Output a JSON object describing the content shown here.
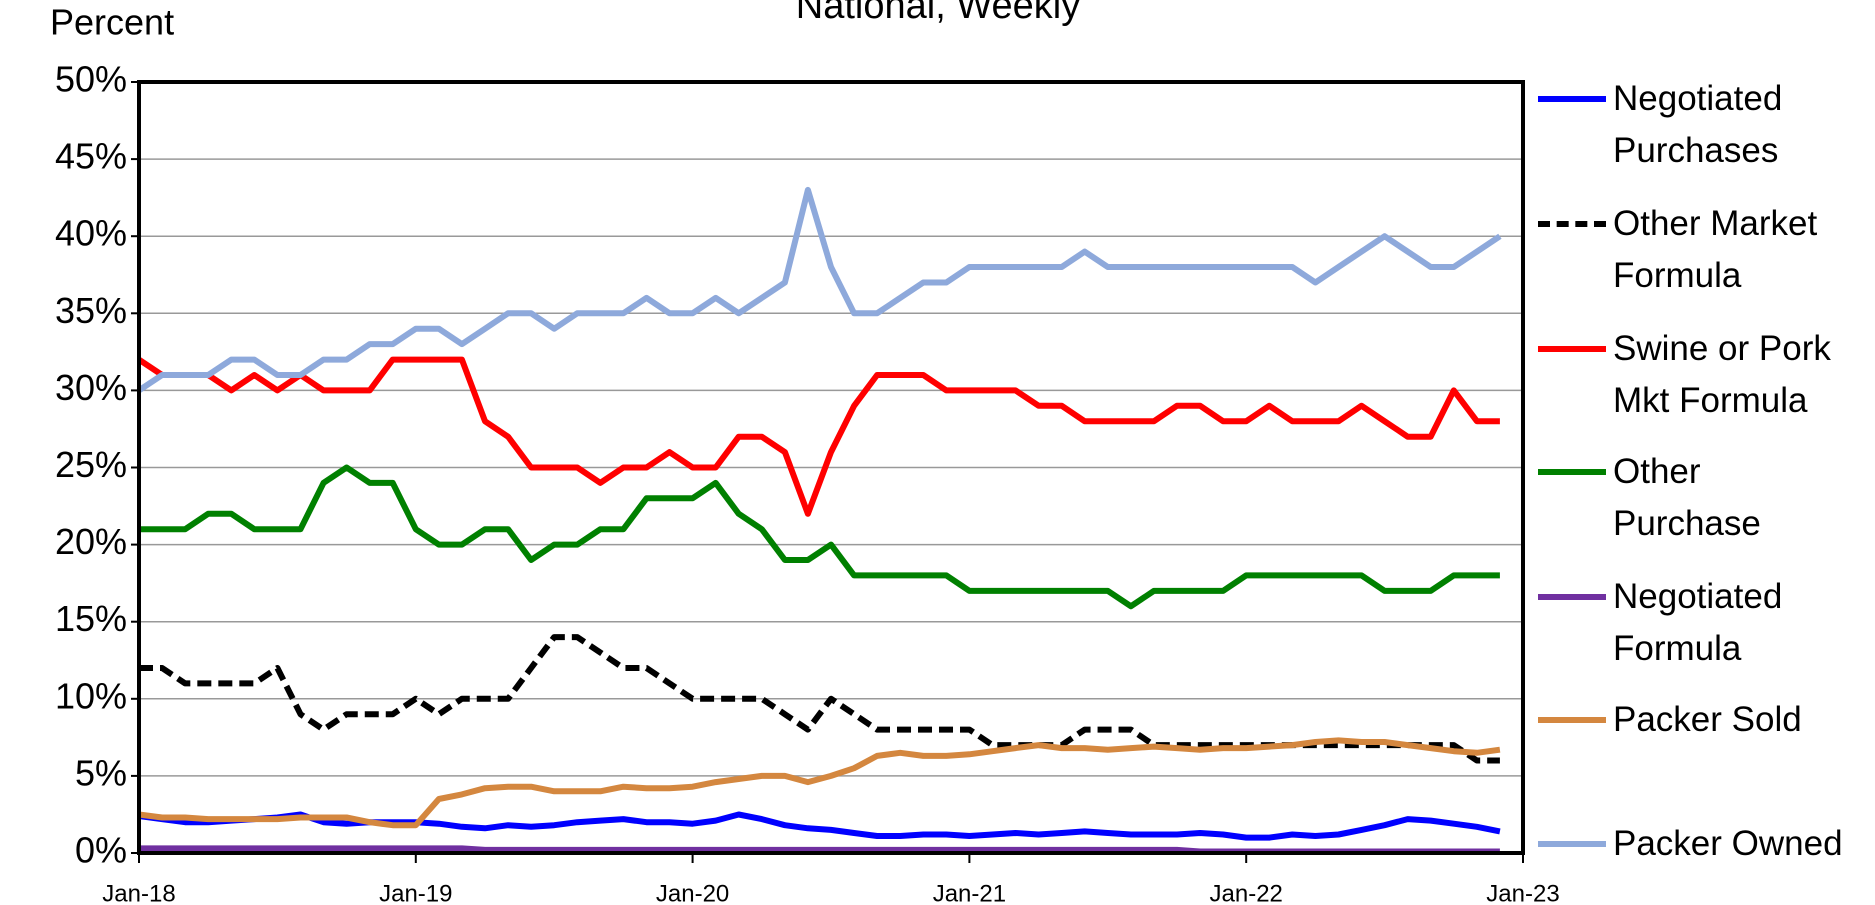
{
  "chart_data": {
    "type": "line",
    "title": "National, Weekly",
    "y_label": "Percent",
    "x": [
      "2018-01",
      "2018-02",
      "2018-03",
      "2018-04",
      "2018-05",
      "2018-06",
      "2018-07",
      "2018-08",
      "2018-09",
      "2018-10",
      "2018-11",
      "2018-12",
      "2019-01",
      "2019-02",
      "2019-03",
      "2019-04",
      "2019-05",
      "2019-06",
      "2019-07",
      "2019-08",
      "2019-09",
      "2019-10",
      "2019-11",
      "2019-12",
      "2020-01",
      "2020-02",
      "2020-03",
      "2020-04",
      "2020-05",
      "2020-06",
      "2020-07",
      "2020-08",
      "2020-09",
      "2020-10",
      "2020-11",
      "2020-12",
      "2021-01",
      "2021-02",
      "2021-03",
      "2021-04",
      "2021-05",
      "2021-06",
      "2021-07",
      "2021-08",
      "2021-09",
      "2021-10",
      "2021-11",
      "2021-12",
      "2022-01",
      "2022-02",
      "2022-03",
      "2022-04",
      "2022-05",
      "2022-06",
      "2022-07",
      "2022-08",
      "2022-09",
      "2022-10",
      "2022-11",
      "2022-12"
    ],
    "xlim": [
      "2018-01",
      "2023-01"
    ],
    "xticks": [
      {
        "value": "2018-01",
        "label": "Jan-18"
      },
      {
        "value": "2019-01",
        "label": "Jan-19"
      },
      {
        "value": "2020-01",
        "label": "Jan-20"
      },
      {
        "value": "2021-01",
        "label": "Jan-21"
      },
      {
        "value": "2022-01",
        "label": "Jan-22"
      },
      {
        "value": "2023-01",
        "label": "Jan-23"
      }
    ],
    "ylim": [
      0,
      50
    ],
    "yticks": [
      {
        "value": 0,
        "label": "0%"
      },
      {
        "value": 5,
        "label": "5%"
      },
      {
        "value": 10,
        "label": "10%"
      },
      {
        "value": 15,
        "label": "15%"
      },
      {
        "value": 20,
        "label": "20%"
      },
      {
        "value": 25,
        "label": "25%"
      },
      {
        "value": 30,
        "label": "30%"
      },
      {
        "value": 35,
        "label": "35%"
      },
      {
        "value": 40,
        "label": "40%"
      },
      {
        "value": 45,
        "label": "45%"
      },
      {
        "value": 50,
        "label": "50%"
      }
    ],
    "grid": true,
    "series": [
      {
        "name": "Negotiated Purchases",
        "color": "#0000ff",
        "values": [
          2.4,
          2.2,
          2.0,
          2.0,
          2.1,
          2.2,
          2.3,
          2.5,
          2.0,
          1.9,
          2.0,
          2.0,
          2.0,
          1.9,
          1.7,
          1.6,
          1.8,
          1.7,
          1.8,
          2.0,
          2.1,
          2.2,
          2.0,
          2.0,
          1.9,
          2.1,
          2.5,
          2.2,
          1.8,
          1.6,
          1.5,
          1.3,
          1.1,
          1.1,
          1.2,
          1.2,
          1.1,
          1.2,
          1.3,
          1.2,
          1.3,
          1.4,
          1.3,
          1.2,
          1.2,
          1.2,
          1.3,
          1.2,
          1.0,
          1.0,
          1.2,
          1.1,
          1.2,
          1.5,
          1.8,
          2.2,
          2.1,
          1.9,
          1.7,
          1.4
        ]
      },
      {
        "name": "Other Market Formula",
        "color": "#000000",
        "dashed": true,
        "values": [
          12,
          12,
          11,
          11,
          11,
          11,
          12,
          9,
          8,
          9,
          9,
          9,
          10,
          9,
          10,
          10,
          10,
          12,
          14,
          14,
          13,
          12,
          12,
          11,
          10,
          10,
          10,
          10,
          9,
          8,
          10,
          9,
          8,
          8,
          8,
          8,
          8,
          7,
          7,
          7,
          7,
          8,
          8,
          8,
          7,
          7,
          7,
          7,
          7,
          7,
          7,
          7,
          7,
          7,
          7,
          7,
          7,
          7,
          6,
          6
        ]
      },
      {
        "name": "Swine or Pork Mkt Formula",
        "color": "#ff0000",
        "values": [
          32,
          31,
          31,
          31,
          30,
          31,
          30,
          31,
          30,
          30,
          30,
          32,
          32,
          32,
          32,
          28,
          27,
          25,
          25,
          25,
          24,
          25,
          25,
          26,
          25,
          25,
          27,
          27,
          26,
          22,
          26,
          29,
          31,
          31,
          31,
          30,
          30,
          30,
          30,
          29,
          29,
          28,
          28,
          28,
          28,
          29,
          29,
          28,
          28,
          29,
          28,
          28,
          28,
          29,
          28,
          27,
          27,
          30,
          28,
          28
        ]
      },
      {
        "name": "Other Purchase",
        "color": "#008000",
        "values": [
          21,
          21,
          21,
          22,
          22,
          21,
          21,
          21,
          24,
          25,
          24,
          24,
          21,
          20,
          20,
          21,
          21,
          19,
          20,
          20,
          21,
          21,
          23,
          23,
          23,
          24,
          22,
          21,
          19,
          19,
          20,
          18,
          18,
          18,
          18,
          18,
          17,
          17,
          17,
          17,
          17,
          17,
          17,
          16,
          17,
          17,
          17,
          17,
          18,
          18,
          18,
          18,
          18,
          18,
          17,
          17,
          17,
          18,
          18,
          18
        ]
      },
      {
        "name": "Negotiated Formula",
        "color": "#7030a0",
        "values": [
          0.3,
          0.3,
          0.3,
          0.3,
          0.3,
          0.3,
          0.3,
          0.3,
          0.3,
          0.3,
          0.3,
          0.3,
          0.3,
          0.3,
          0.3,
          0.2,
          0.2,
          0.2,
          0.2,
          0.2,
          0.2,
          0.2,
          0.2,
          0.2,
          0.2,
          0.2,
          0.2,
          0.2,
          0.2,
          0.2,
          0.2,
          0.2,
          0.2,
          0.2,
          0.2,
          0.2,
          0.2,
          0.2,
          0.2,
          0.2,
          0.2,
          0.2,
          0.2,
          0.2,
          0.2,
          0.2,
          0.1,
          0.1,
          0.1,
          0.1,
          0.1,
          0.1,
          0.1,
          0.1,
          0.1,
          0.1,
          0.1,
          0.1,
          0.1,
          0.1
        ]
      },
      {
        "name": "Packer Sold",
        "color": "#d4873f",
        "values": [
          2.5,
          2.3,
          2.3,
          2.2,
          2.2,
          2.2,
          2.2,
          2.3,
          2.3,
          2.3,
          2.0,
          1.8,
          1.8,
          3.5,
          3.8,
          4.2,
          4.3,
          4.3,
          4.0,
          4.0,
          4.0,
          4.3,
          4.2,
          4.2,
          4.3,
          4.6,
          4.8,
          5.0,
          5.0,
          4.6,
          5.0,
          5.5,
          6.3,
          6.5,
          6.3,
          6.3,
          6.4,
          6.6,
          6.8,
          7.0,
          6.8,
          6.8,
          6.7,
          6.8,
          6.9,
          6.8,
          6.7,
          6.8,
          6.8,
          6.9,
          7.0,
          7.2,
          7.3,
          7.2,
          7.2,
          7.0,
          6.8,
          6.6,
          6.5,
          6.7
        ]
      },
      {
        "name": "Packer Owned",
        "color": "#8ea9db",
        "values": [
          30,
          31,
          31,
          31,
          32,
          32,
          31,
          31,
          32,
          32,
          33,
          33,
          34,
          34,
          33,
          34,
          35,
          35,
          34,
          35,
          35,
          35,
          36,
          35,
          35,
          36,
          35,
          36,
          37,
          43,
          38,
          35,
          35,
          36,
          37,
          37,
          38,
          38,
          38,
          38,
          38,
          39,
          38,
          38,
          38,
          38,
          38,
          38,
          38,
          38,
          38,
          37,
          38,
          39,
          40,
          39,
          38,
          38,
          39,
          40
        ]
      }
    ]
  }
}
